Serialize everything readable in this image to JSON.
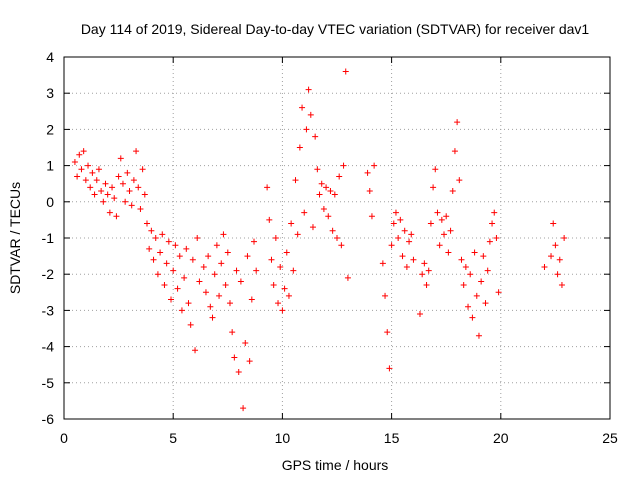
{
  "chart_data": {
    "type": "scatter",
    "title": "Day 114 of 2019, Sidereal Day-to-day VTEC variation (SDTVAR) for receiver dav1",
    "xlabel": "GPS time / hours",
    "ylabel": "SDTVAR / TECUs",
    "xlim": [
      0,
      25
    ],
    "ylim": [
      -6,
      4
    ],
    "xticks": [
      "0",
      "5",
      "10",
      "15",
      "20",
      "25"
    ],
    "yticks": [
      "-6",
      "-5",
      "-4",
      "-3",
      "-2",
      "-1",
      "0",
      "1",
      "2",
      "3",
      "4"
    ],
    "grid": true,
    "marker": "+",
    "color": "#ff0000",
    "series": [
      {
        "name": "SDTVAR",
        "points": [
          [
            0.5,
            1.1
          ],
          [
            0.6,
            0.7
          ],
          [
            0.7,
            1.3
          ],
          [
            0.8,
            0.9
          ],
          [
            0.9,
            1.4
          ],
          [
            1.0,
            0.6
          ],
          [
            1.1,
            1.0
          ],
          [
            1.2,
            0.4
          ],
          [
            1.3,
            0.8
          ],
          [
            1.4,
            0.2
          ],
          [
            1.5,
            0.6
          ],
          [
            1.6,
            0.9
          ],
          [
            1.7,
            0.3
          ],
          [
            1.8,
            0.0
          ],
          [
            1.9,
            0.5
          ],
          [
            2.0,
            0.2
          ],
          [
            2.1,
            -0.3
          ],
          [
            2.2,
            0.4
          ],
          [
            2.3,
            0.1
          ],
          [
            2.4,
            -0.4
          ],
          [
            2.5,
            0.7
          ],
          [
            2.6,
            1.2
          ],
          [
            2.7,
            0.5
          ],
          [
            2.8,
            0.0
          ],
          [
            2.9,
            0.8
          ],
          [
            3.0,
            0.3
          ],
          [
            3.1,
            -0.1
          ],
          [
            3.2,
            0.6
          ],
          [
            3.3,
            1.4
          ],
          [
            3.4,
            0.4
          ],
          [
            3.5,
            -0.2
          ],
          [
            3.6,
            0.9
          ],
          [
            3.7,
            0.2
          ],
          [
            3.8,
            -0.6
          ],
          [
            3.9,
            -1.3
          ],
          [
            4.0,
            -0.8
          ],
          [
            4.1,
            -1.6
          ],
          [
            4.2,
            -1.0
          ],
          [
            4.3,
            -2.0
          ],
          [
            4.4,
            -1.4
          ],
          [
            4.5,
            -0.9
          ],
          [
            4.6,
            -2.3
          ],
          [
            4.7,
            -1.7
          ],
          [
            4.8,
            -1.1
          ],
          [
            4.9,
            -2.7
          ],
          [
            5.0,
            -1.9
          ],
          [
            5.1,
            -1.2
          ],
          [
            5.2,
            -2.4
          ],
          [
            5.3,
            -1.5
          ],
          [
            5.4,
            -3.0
          ],
          [
            5.5,
            -2.1
          ],
          [
            5.6,
            -1.3
          ],
          [
            5.7,
            -2.8
          ],
          [
            5.8,
            -3.4
          ],
          [
            5.9,
            -1.6
          ],
          [
            6.0,
            -4.1
          ],
          [
            6.1,
            -1.0
          ],
          [
            6.2,
            -2.2
          ],
          [
            6.4,
            -1.8
          ],
          [
            6.5,
            -2.5
          ],
          [
            6.6,
            -1.5
          ],
          [
            6.7,
            -2.9
          ],
          [
            6.8,
            -3.2
          ],
          [
            6.9,
            -2.0
          ],
          [
            7.0,
            -1.2
          ],
          [
            7.1,
            -2.6
          ],
          [
            7.2,
            -1.7
          ],
          [
            7.3,
            -0.9
          ],
          [
            7.4,
            -2.3
          ],
          [
            7.5,
            -1.4
          ],
          [
            7.6,
            -2.8
          ],
          [
            7.7,
            -3.6
          ],
          [
            7.8,
            -4.3
          ],
          [
            7.9,
            -1.9
          ],
          [
            8.0,
            -4.7
          ],
          [
            8.1,
            -2.2
          ],
          [
            8.2,
            -5.7
          ],
          [
            8.3,
            -3.9
          ],
          [
            8.4,
            -1.5
          ],
          [
            8.5,
            -4.4
          ],
          [
            8.6,
            -2.7
          ],
          [
            8.7,
            -1.1
          ],
          [
            8.8,
            -1.9
          ],
          [
            9.3,
            0.4
          ],
          [
            9.4,
            -0.5
          ],
          [
            9.5,
            -1.6
          ],
          [
            9.6,
            -2.3
          ],
          [
            9.7,
            -1.0
          ],
          [
            9.8,
            -2.8
          ],
          [
            9.9,
            -1.8
          ],
          [
            10.0,
            -3.0
          ],
          [
            10.1,
            -2.4
          ],
          [
            10.2,
            -1.4
          ],
          [
            10.3,
            -2.6
          ],
          [
            10.4,
            -0.6
          ],
          [
            10.5,
            -1.9
          ],
          [
            10.6,
            0.6
          ],
          [
            10.7,
            -0.9
          ],
          [
            10.8,
            1.5
          ],
          [
            10.9,
            2.6
          ],
          [
            11.0,
            -0.3
          ],
          [
            11.1,
            2.0
          ],
          [
            11.2,
            3.1
          ],
          [
            11.3,
            2.4
          ],
          [
            11.4,
            -0.7
          ],
          [
            11.5,
            1.8
          ],
          [
            11.6,
            0.9
          ],
          [
            11.7,
            0.2
          ],
          [
            11.8,
            0.5
          ],
          [
            11.9,
            -0.2
          ],
          [
            12.0,
            0.4
          ],
          [
            12.1,
            -0.4
          ],
          [
            12.2,
            0.3
          ],
          [
            12.3,
            -0.8
          ],
          [
            12.4,
            0.2
          ],
          [
            12.5,
            -1.0
          ],
          [
            12.6,
            0.7
          ],
          [
            12.7,
            -1.2
          ],
          [
            12.8,
            1.0
          ],
          [
            12.9,
            3.6
          ],
          [
            13.0,
            -2.1
          ],
          [
            13.9,
            0.8
          ],
          [
            14.0,
            0.3
          ],
          [
            14.1,
            -0.4
          ],
          [
            14.2,
            1.0
          ],
          [
            14.6,
            -1.7
          ],
          [
            14.7,
            -2.6
          ],
          [
            14.8,
            -3.6
          ],
          [
            14.9,
            -4.6
          ],
          [
            15.0,
            -1.2
          ],
          [
            15.1,
            -0.6
          ],
          [
            15.2,
            -0.3
          ],
          [
            15.3,
            -1.0
          ],
          [
            15.4,
            -0.5
          ],
          [
            15.5,
            -1.5
          ],
          [
            15.6,
            -0.8
          ],
          [
            15.7,
            -1.8
          ],
          [
            15.8,
            -1.1
          ],
          [
            15.9,
            -0.9
          ],
          [
            16.0,
            -1.6
          ],
          [
            16.3,
            -3.1
          ],
          [
            16.4,
            -2.0
          ],
          [
            16.5,
            -1.7
          ],
          [
            16.6,
            -2.3
          ],
          [
            16.7,
            -1.9
          ],
          [
            16.8,
            -0.6
          ],
          [
            16.9,
            0.4
          ],
          [
            17.0,
            0.9
          ],
          [
            17.1,
            -0.3
          ],
          [
            17.2,
            -1.2
          ],
          [
            17.3,
            -0.5
          ],
          [
            17.4,
            -0.9
          ],
          [
            17.5,
            -0.4
          ],
          [
            17.6,
            -1.4
          ],
          [
            17.7,
            -0.8
          ],
          [
            17.8,
            0.3
          ],
          [
            17.9,
            1.4
          ],
          [
            18.0,
            2.2
          ],
          [
            18.1,
            0.6
          ],
          [
            18.2,
            -1.6
          ],
          [
            18.3,
            -2.3
          ],
          [
            18.4,
            -1.8
          ],
          [
            18.5,
            -2.9
          ],
          [
            18.6,
            -2.0
          ],
          [
            18.7,
            -3.2
          ],
          [
            18.8,
            -1.4
          ],
          [
            18.9,
            -2.6
          ],
          [
            19.0,
            -3.7
          ],
          [
            19.1,
            -2.2
          ],
          [
            19.2,
            -1.5
          ],
          [
            19.3,
            -2.8
          ],
          [
            19.4,
            -1.9
          ],
          [
            19.5,
            -1.1
          ],
          [
            19.6,
            -0.6
          ],
          [
            19.7,
            -0.3
          ],
          [
            19.8,
            -1.0
          ],
          [
            19.9,
            -2.5
          ],
          [
            22.0,
            -1.8
          ],
          [
            22.3,
            -1.5
          ],
          [
            22.4,
            -0.6
          ],
          [
            22.5,
            -1.2
          ],
          [
            22.6,
            -2.0
          ],
          [
            22.7,
            -1.6
          ],
          [
            22.8,
            -2.3
          ],
          [
            22.9,
            -1.0
          ]
        ]
      }
    ]
  }
}
